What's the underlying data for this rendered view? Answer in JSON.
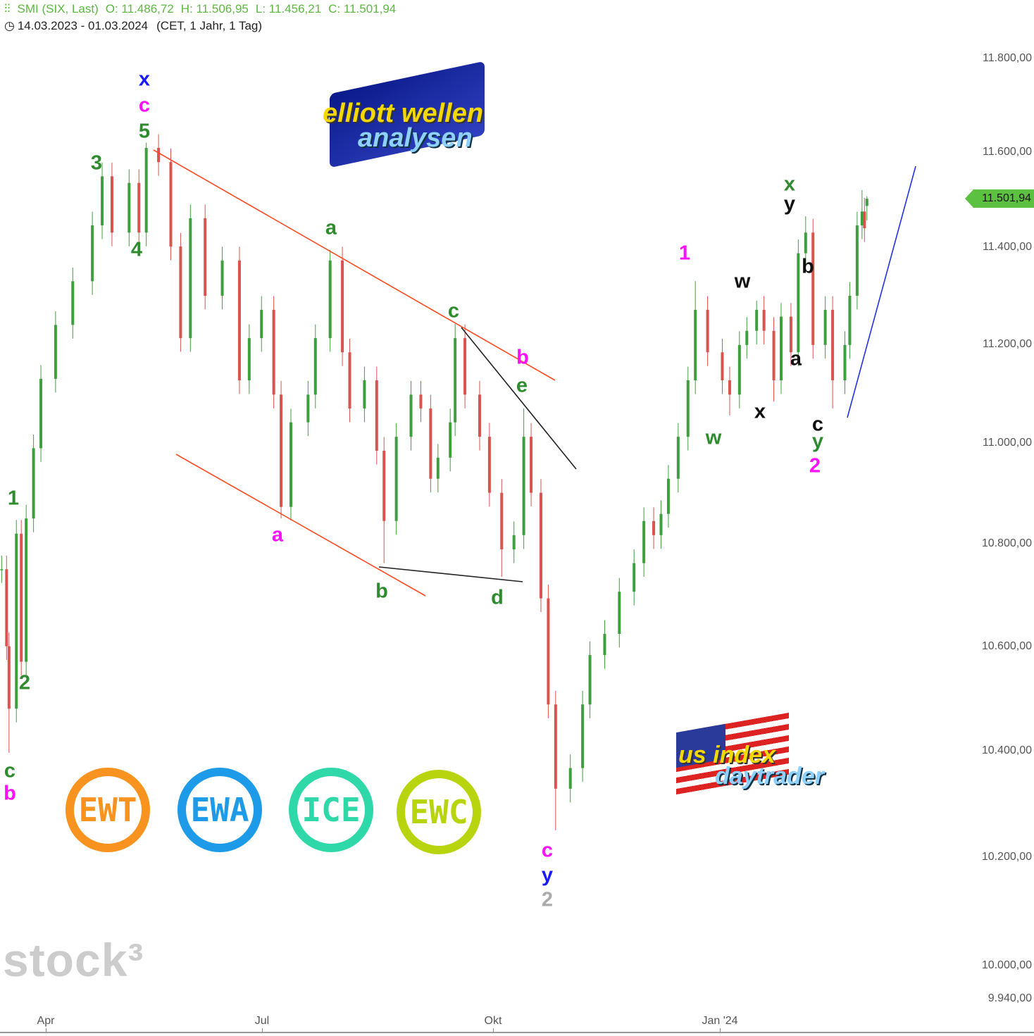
{
  "header": {
    "instrument": "SMI (SIX, Last)",
    "open": "O: 11.486,72",
    "high": "H: 11.506,95",
    "low": "L: 11.456,21",
    "close": "C: 11.501,94",
    "range": "14.03.2023 - 01.03.2024",
    "settings": "(CET, 1 Jahr, 1 Tag)"
  },
  "last_price_tag": "11.501,94",
  "logos": {
    "elliott": [
      "elliott wellen",
      "analysen"
    ],
    "usindex": [
      "us index",
      "daytrader"
    ],
    "badges": [
      {
        "text": "EWT",
        "color": "#f7931e"
      },
      {
        "text": "EWA",
        "color": "#1e9be8"
      },
      {
        "text": "ICE",
        "color": "#2ed8a8"
      },
      {
        "text": "EWC",
        "color": "#b8d40c"
      }
    ],
    "watermark": "stock³"
  },
  "colors": {
    "up": "#3f9f3f",
    "down": "#d9534f",
    "channel": "#ff4a22",
    "triangle": "#222222",
    "trend": "#2233dd",
    "accent": "#5cc040"
  },
  "annotations": [
    {
      "text": "x",
      "color": "#1a1aff"
    },
    {
      "text": "c",
      "color": "#ff10ff"
    },
    {
      "text": "5",
      "color": "#2e8b2e"
    },
    {
      "text": "3",
      "color": "#2e8b2e"
    },
    {
      "text": "4",
      "color": "#2e8b2e"
    },
    {
      "text": "1",
      "color": "#2e8b2e"
    },
    {
      "text": "2",
      "color": "#2e8b2e"
    },
    {
      "text": "c",
      "color": "#2e8b2e"
    },
    {
      "text": "b",
      "color": "#ff10ff"
    },
    {
      "text": "a",
      "color": "#2e8b2e"
    },
    {
      "text": "c",
      "color": "#2e8b2e"
    },
    {
      "text": "b",
      "color": "#ff10ff"
    },
    {
      "text": "e",
      "color": "#2e8b2e"
    },
    {
      "text": "a",
      "color": "#ff10ff"
    },
    {
      "text": "b",
      "color": "#2e8b2e"
    },
    {
      "text": "d",
      "color": "#2e8b2e"
    },
    {
      "text": "c",
      "color": "#ff10ff"
    },
    {
      "text": "y",
      "color": "#1a1aff"
    },
    {
      "text": "2",
      "color": "#aaaaaa"
    },
    {
      "text": "1",
      "color": "#ff10ff"
    },
    {
      "text": "w",
      "color": "#111111"
    },
    {
      "text": "w",
      "color": "#2e8b2e"
    },
    {
      "text": "x",
      "color": "#111111"
    },
    {
      "text": "x",
      "color": "#2e8b2e"
    },
    {
      "text": "y",
      "color": "#111111"
    },
    {
      "text": "b",
      "color": "#111111"
    },
    {
      "text": "a",
      "color": "#111111"
    },
    {
      "text": "c",
      "color": "#111111"
    },
    {
      "text": "y",
      "color": "#2e8b2e"
    },
    {
      "text": "2",
      "color": "#ff10ff"
    }
  ],
  "chart_data": {
    "type": "candlestick",
    "title": "SMI (SIX, Last)",
    "y_scale": "log",
    "ylim": [
      9940,
      11850
    ],
    "y_ticks": [
      "11.800,00",
      "11.600,00",
      "11.400,00",
      "11.200,00",
      "11.000,00",
      "10.800,00",
      "10.600,00",
      "10.400,00",
      "10.200,00",
      "10.000,00",
      "9.940,00"
    ],
    "y_tick_values": [
      11800,
      11600,
      11400,
      11200,
      11000,
      10800,
      10600,
      10400,
      10200,
      10000,
      9940
    ],
    "x_ticks": [
      "Apr",
      "Jul",
      "Okt",
      "Jan '24"
    ],
    "x_tick_dates": [
      "2023-04-01",
      "2023-07-01",
      "2023-10-01",
      "2024-01-01"
    ],
    "grid": false,
    "series": [
      {
        "d": "2023-03-14",
        "c": 10750
      },
      {
        "d": "2023-03-16",
        "c": 10600
      },
      {
        "d": "2023-03-17",
        "c": 10480,
        "l": 10396
      },
      {
        "d": "2023-03-20",
        "c": 10820
      },
      {
        "d": "2023-03-22",
        "c": 10570
      },
      {
        "d": "2023-03-24",
        "c": 10850
      },
      {
        "d": "2023-03-27",
        "c": 10990
      },
      {
        "d": "2023-03-30",
        "c": 11130
      },
      {
        "d": "2023-04-05",
        "c": 11240
      },
      {
        "d": "2023-04-12",
        "c": 11330
      },
      {
        "d": "2023-04-20",
        "c": 11446
      },
      {
        "d": "2023-04-24",
        "c": 11549
      },
      {
        "d": "2023-04-28",
        "c": 11431
      },
      {
        "d": "2023-05-05",
        "c": 11535
      },
      {
        "d": "2023-05-09",
        "c": 11431
      },
      {
        "d": "2023-05-12",
        "c": 11609,
        "h": 11620
      },
      {
        "d": "2023-05-17",
        "c": 11579
      },
      {
        "d": "2023-05-22",
        "c": 11402
      },
      {
        "d": "2023-05-26",
        "c": 11213
      },
      {
        "d": "2023-05-30",
        "c": 11461
      },
      {
        "d": "2023-06-05",
        "c": 11300
      },
      {
        "d": "2023-06-12",
        "c": 11373
      },
      {
        "d": "2023-06-19",
        "c": 11127
      },
      {
        "d": "2023-06-23",
        "c": 11213
      },
      {
        "d": "2023-06-28",
        "c": 11271
      },
      {
        "d": "2023-07-03",
        "c": 11098
      },
      {
        "d": "2023-07-06",
        "c": 10873,
        "l": 10850
      },
      {
        "d": "2023-07-10",
        "c": 11042
      },
      {
        "d": "2023-07-17",
        "c": 11098
      },
      {
        "d": "2023-07-20",
        "c": 11213
      },
      {
        "d": "2023-07-26",
        "c": 11373,
        "h": 11395
      },
      {
        "d": "2023-07-31",
        "c": 11184
      },
      {
        "d": "2023-08-03",
        "c": 11070
      },
      {
        "d": "2023-08-09",
        "c": 11127
      },
      {
        "d": "2023-08-14",
        "c": 10985
      },
      {
        "d": "2023-08-17",
        "c": 10845,
        "l": 10762
      },
      {
        "d": "2023-08-22",
        "c": 11013
      },
      {
        "d": "2023-08-28",
        "c": 11098
      },
      {
        "d": "2023-09-01",
        "c": 11070
      },
      {
        "d": "2023-09-05",
        "c": 10929
      },
      {
        "d": "2023-09-08",
        "c": 10971
      },
      {
        "d": "2023-09-13",
        "c": 11042
      },
      {
        "d": "2023-09-15",
        "c": 11213,
        "h": 11242
      },
      {
        "d": "2023-09-19",
        "c": 11098
      },
      {
        "d": "2023-09-25",
        "c": 11013
      },
      {
        "d": "2023-09-29",
        "c": 10901
      },
      {
        "d": "2023-10-04",
        "c": 10789,
        "l": 10735
      },
      {
        "d": "2023-10-09",
        "c": 10817
      },
      {
        "d": "2023-10-13",
        "c": 11013,
        "h": 11070
      },
      {
        "d": "2023-10-16",
        "c": 10901
      },
      {
        "d": "2023-10-20",
        "c": 10693
      },
      {
        "d": "2023-10-23",
        "c": 10488
      },
      {
        "d": "2023-10-26",
        "c": 10328,
        "l": 10250
      },
      {
        "d": "2023-11-01",
        "c": 10367
      },
      {
        "d": "2023-11-06",
        "c": 10488
      },
      {
        "d": "2023-11-09",
        "c": 10583
      },
      {
        "d": "2023-11-15",
        "c": 10624
      },
      {
        "d": "2023-11-21",
        "c": 10706
      },
      {
        "d": "2023-11-27",
        "c": 10762
      },
      {
        "d": "2023-12-01",
        "c": 10845
      },
      {
        "d": "2023-12-05",
        "c": 10817
      },
      {
        "d": "2023-12-08",
        "c": 10859
      },
      {
        "d": "2023-12-11",
        "c": 10929
      },
      {
        "d": "2023-12-15",
        "c": 11013
      },
      {
        "d": "2023-12-19",
        "c": 11127
      },
      {
        "d": "2023-12-22",
        "c": 11271,
        "h": 11330
      },
      {
        "d": "2023-12-27",
        "c": 11184
      },
      {
        "d": "2024-01-02",
        "c": 11127
      },
      {
        "d": "2024-01-05",
        "c": 11098,
        "l": 11056
      },
      {
        "d": "2024-01-09",
        "c": 11199
      },
      {
        "d": "2024-01-12",
        "c": 11228
      },
      {
        "d": "2024-01-16",
        "c": 11271,
        "h": 11290
      },
      {
        "d": "2024-01-19",
        "c": 11228
      },
      {
        "d": "2024-01-23",
        "c": 11127,
        "l": 11084
      },
      {
        "d": "2024-01-26",
        "c": 11257
      },
      {
        "d": "2024-01-30",
        "c": 11184
      },
      {
        "d": "2024-02-02",
        "c": 11388
      },
      {
        "d": "2024-02-05",
        "c": 11431,
        "h": 11465
      },
      {
        "d": "2024-02-08",
        "c": 11199
      },
      {
        "d": "2024-02-13",
        "c": 11271
      },
      {
        "d": "2024-02-16",
        "c": 11127,
        "l": 11070
      },
      {
        "d": "2024-02-21",
        "c": 11199
      },
      {
        "d": "2024-02-23",
        "c": 11300
      },
      {
        "d": "2024-02-26",
        "c": 11446
      },
      {
        "d": "2024-02-28",
        "c": 11475,
        "h": 11520
      },
      {
        "d": "2024-02-29",
        "c": 11440
      },
      {
        "d": "2024-03-01",
        "o": 11486.72,
        "h": 11506.95,
        "l": 11456.21,
        "c": 11501.94
      }
    ]
  }
}
